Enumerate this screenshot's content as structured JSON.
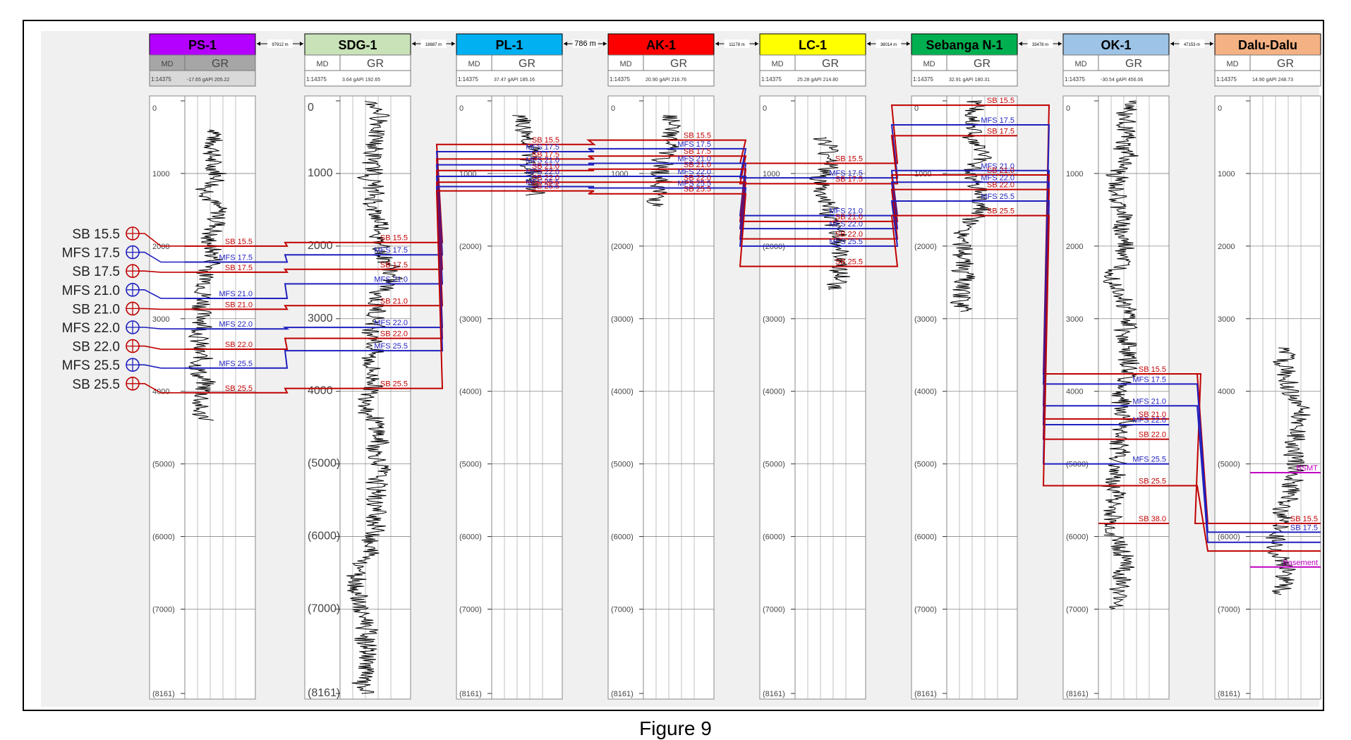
{
  "figure": {
    "caption": "Figure 9"
  },
  "depth": {
    "ticks": [
      {
        "value": 0,
        "label": "0",
        "label_alt": "0"
      },
      {
        "value": 1000,
        "label": "1000",
        "label_alt": "1000"
      },
      {
        "value": 2000,
        "label": "2000",
        "label_alt": "(2000)"
      },
      {
        "value": 3000,
        "label": "3000",
        "label_alt": "(3000)"
      },
      {
        "value": 4000,
        "label": "4000",
        "label_alt": "(4000)"
      },
      {
        "value": 5000,
        "label": "(5000)",
        "label_alt": "(5000)"
      },
      {
        "value": 6000,
        "label": "(6000)",
        "label_alt": "(6000)"
      },
      {
        "value": 7000,
        "label": "(7000)",
        "label_alt": "(7000)"
      },
      {
        "value": 8161,
        "label": "(8161)",
        "label_alt": "(8161)"
      }
    ],
    "max": 8161
  },
  "wells": [
    {
      "name": "PS-1",
      "color": "#b300ff",
      "scale": "1:14375",
      "gr_min": "-17.65 gAPI",
      "gr_max": "205.22",
      "depth_top": 400,
      "depth_bottom": 4400,
      "depth_labels_mode": "plain_first",
      "spacing_label": "97912 m",
      "tops": [
        {
          "name": "SB 15.5",
          "type": "SB",
          "md": 2000
        },
        {
          "name": "MFS 17.5",
          "type": "MFS",
          "md": 2220
        },
        {
          "name": "SB 17.5",
          "type": "SB",
          "md": 2360
        },
        {
          "name": "MFS 21.0",
          "type": "MFS",
          "md": 2720
        },
        {
          "name": "SB 21.0",
          "type": "SB",
          "md": 2870
        },
        {
          "name": "MFS 22.0",
          "type": "MFS",
          "md": 3140
        },
        {
          "name": "SB 22.0",
          "type": "SB",
          "md": 3420
        },
        {
          "name": "MFS 25.5",
          "type": "MFS",
          "md": 3680
        },
        {
          "name": "SB 25.5",
          "type": "SB",
          "md": 4020
        }
      ]
    },
    {
      "name": "SDG-1",
      "color": "#c9e2b8",
      "scale": "1:14375",
      "gr_min": "3.64 gAPI",
      "gr_max": "192.65",
      "depth_top": 0,
      "depth_bottom": 8161,
      "depth_labels_mode": "plain",
      "spacing_label": "18887 m",
      "tops": [
        {
          "name": "SB 15.5",
          "type": "SB",
          "md": 1950
        },
        {
          "name": "MFS 17.5",
          "type": "MFS",
          "md": 2120
        },
        {
          "name": "SB 17.5",
          "type": "SB",
          "md": 2320
        },
        {
          "name": "MFS 21.0",
          "type": "MFS",
          "md": 2520
        },
        {
          "name": "SB 21.0",
          "type": "SB",
          "md": 2820
        },
        {
          "name": "MFS 22.0",
          "type": "MFS",
          "md": 3120
        },
        {
          "name": "SB 22.0",
          "type": "SB",
          "md": 3270
        },
        {
          "name": "MFS 25.5",
          "type": "MFS",
          "md": 3440
        },
        {
          "name": "SB 25.5",
          "type": "SB",
          "md": 3960
        }
      ]
    },
    {
      "name": "PL-1",
      "color": "#00b0f0",
      "scale": "1:14375",
      "gr_min": "37.47 gAPI",
      "gr_max": "185.16",
      "depth_top": 200,
      "depth_bottom": 1300,
      "depth_labels_mode": "alt",
      "spacing_label": "786 m",
      "tops": [
        {
          "name": "SB 15.5",
          "type": "SB",
          "md": 600
        },
        {
          "name": "MFS 17.5",
          "type": "MFS",
          "md": 700
        },
        {
          "name": "SB 17.5",
          "type": "SB",
          "md": 800
        },
        {
          "name": "MFS 21.0",
          "type": "MFS",
          "md": 880
        },
        {
          "name": "SB 21.0",
          "type": "SB",
          "md": 960
        },
        {
          "name": "MFS 22.0",
          "type": "MFS",
          "md": 1040
        },
        {
          "name": "SB 22.0",
          "type": "SB",
          "md": 1120
        },
        {
          "name": "MFS 25.5",
          "type": "MFS",
          "md": 1180
        },
        {
          "name": "SB 25.5",
          "type": "SB",
          "md": 1240
        }
      ]
    },
    {
      "name": "AK-1",
      "color": "#ff0000",
      "scale": "1:14375",
      "gr_min": "20.90 gAPI",
      "gr_max": "216.76",
      "depth_top": 200,
      "depth_bottom": 1450,
      "depth_labels_mode": "alt",
      "spacing_label": "11178 m",
      "tops": [
        {
          "name": "SB 15.5",
          "type": "SB",
          "md": 540
        },
        {
          "name": "MFS 17.5",
          "type": "MFS",
          "md": 660
        },
        {
          "name": "SB 17.5",
          "type": "SB",
          "md": 760
        },
        {
          "name": "MFS 21.0",
          "type": "MFS",
          "md": 860
        },
        {
          "name": "SB 21.0",
          "type": "SB",
          "md": 940
        },
        {
          "name": "MFS 22.0",
          "type": "MFS",
          "md": 1040
        },
        {
          "name": "SB 22.0",
          "type": "SB",
          "md": 1120
        },
        {
          "name": "MFS 25.5",
          "type": "MFS",
          "md": 1200
        },
        {
          "name": "SB 25.5",
          "type": "SB",
          "md": 1280
        }
      ]
    },
    {
      "name": "LC-1",
      "color": "#ffff00",
      "scale": "1:14375",
      "gr_min": "25.28 gAPI",
      "gr_max": "214.80",
      "depth_top": 500,
      "depth_bottom": 2600,
      "depth_labels_mode": "alt",
      "spacing_label": "38014 m",
      "tops": [
        {
          "name": "SB 15.5",
          "type": "SB",
          "md": 860
        },
        {
          "name": "MFS 17.5",
          "type": "MFS",
          "md": 1060
        },
        {
          "name": "SB 17.5",
          "type": "SB",
          "md": 1140
        },
        {
          "name": "MFS 21.0",
          "type": "MFS",
          "md": 1580
        },
        {
          "name": "SB 21.0",
          "type": "SB",
          "md": 1660
        },
        {
          "name": "MFS 22.0",
          "type": "MFS",
          "md": 1760
        },
        {
          "name": "SB 22.0",
          "type": "SB",
          "md": 1900
        },
        {
          "name": "MFS 25.5",
          "type": "MFS",
          "md": 2000
        },
        {
          "name": "SB 25.5",
          "type": "SB",
          "md": 2280
        }
      ]
    },
    {
      "name": "Sebanga N-1",
      "color": "#00b050",
      "scale": "1:14375",
      "gr_min": "32.91 gAPI",
      "gr_max": "180.31",
      "depth_top": 0,
      "depth_bottom": 2900,
      "depth_labels_mode": "alt",
      "spacing_label": "33478 m",
      "tops": [
        {
          "name": "SB 15.5",
          "type": "SB",
          "md": 60
        },
        {
          "name": "MFS 17.5",
          "type": "MFS",
          "md": 330
        },
        {
          "name": "SB 17.5",
          "type": "SB",
          "md": 480
        },
        {
          "name": "MFS 21.0",
          "type": "MFS",
          "md": 960
        },
        {
          "name": "SB 21.0",
          "type": "SB",
          "md": 1020
        },
        {
          "name": "MFS 22.0",
          "type": "MFS",
          "md": 1120
        },
        {
          "name": "SB 22.0",
          "type": "SB",
          "md": 1220
        },
        {
          "name": "MFS 25.5",
          "type": "MFS",
          "md": 1380
        },
        {
          "name": "SB 25.5",
          "type": "SB",
          "md": 1580
        }
      ]
    },
    {
      "name": "OK-1",
      "color": "#9dc3e6",
      "scale": "1:14375",
      "gr_min": "-30.54 gAPI",
      "gr_max": "456.06",
      "depth_top": 0,
      "depth_bottom": 7000,
      "depth_labels_mode": "plain",
      "spacing_label": "47153 m",
      "tops": [
        {
          "name": "SB 15.5",
          "type": "SB",
          "md": 3760
        },
        {
          "name": "MFS 17.5",
          "type": "MFS",
          "md": 3900
        },
        {
          "name": "MFS 21.0",
          "type": "MFS",
          "md": 4200
        },
        {
          "name": "SB 21.0",
          "type": "SB",
          "md": 4380
        },
        {
          "name": "MFS 22.0",
          "type": "MFS",
          "md": 4460
        },
        {
          "name": "SB 22.0",
          "type": "SB",
          "md": 4660
        },
        {
          "name": "MFS 25.5",
          "type": "MFS",
          "md": 5000
        },
        {
          "name": "SB 25.5",
          "type": "SB",
          "md": 5300
        },
        {
          "name": "SB 38.0",
          "type": "SB",
          "md": 5820
        }
      ]
    },
    {
      "name": "Dalu-Dalu",
      "color": "#f4b183",
      "scale": "1:14375",
      "gr_min": "14.90 gAPI",
      "gr_max": "248.73",
      "depth_top": 3400,
      "depth_bottom": 6800,
      "depth_labels_mode": "plain",
      "spacing_label": "",
      "tops": [
        {
          "name": "BSMT",
          "type": "BSMT",
          "md": 5120
        },
        {
          "name": "SB 15.5",
          "type": "SB",
          "md": 5820
        },
        {
          "name": "SB 17.5",
          "type": "MFS",
          "md": 5940
        },
        {
          "name": "",
          "type": "MFS",
          "md": 6080
        },
        {
          "name": "",
          "type": "SB",
          "md": 6200
        },
        {
          "name": "Basement",
          "type": "BSMT",
          "md": 6420
        }
      ]
    }
  ],
  "track_headers": {
    "md": "MD",
    "gr": "GR"
  },
  "legend": [
    {
      "label": "SB 15.5",
      "type": "SB"
    },
    {
      "label": "MFS 17.5",
      "type": "MFS"
    },
    {
      "label": "SB 17.5",
      "type": "SB"
    },
    {
      "label": "MFS 21.0",
      "type": "MFS"
    },
    {
      "label": "SB 21.0",
      "type": "SB"
    },
    {
      "label": "MFS 22.0",
      "type": "MFS"
    },
    {
      "label": "SB 22.0",
      "type": "SB"
    },
    {
      "label": "MFS 25.5",
      "type": "MFS"
    },
    {
      "label": "SB 25.5",
      "type": "SB"
    }
  ],
  "colors": {
    "SB": "#c00000",
    "MFS": "#1f1fbf",
    "BSMT": "#c000c0",
    "log": "#000000",
    "track_bg": "#ffffff",
    "panel_bg": "#f0f0f0",
    "header_bg": "#a6a6a6"
  }
}
